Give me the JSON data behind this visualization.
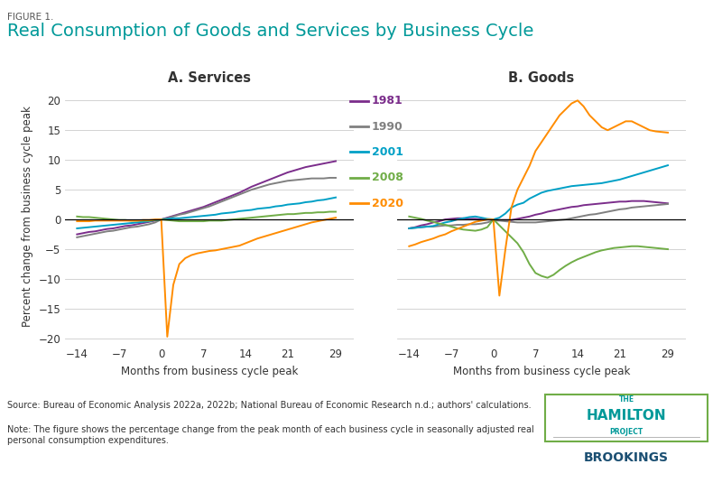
{
  "title_small": "FIGURE 1.",
  "title_main": "Real Consumption of Goods and Services by Business Cycle",
  "subtitle_left": "A. Services",
  "subtitle_right": "B. Goods",
  "ylabel": "Percent change from business cycle peak",
  "xlabel": "Months from business cycle peak",
  "xticks": [
    -14,
    -7,
    0,
    7,
    14,
    21,
    29
  ],
  "xlim": [
    -16,
    32
  ],
  "ylim": [
    -21,
    22
  ],
  "yticks": [
    -20,
    -15,
    -10,
    -5,
    0,
    5,
    10,
    15,
    20
  ],
  "source_text": "Source: Bureau of Economic Analysis 2022a, 2022b; National Bureau of Economic Research n.d.; authors' calculations.",
  "note_text": "Note: The figure shows the percentage change from the peak month of each business cycle in seasonally adjusted real\npersonal consumption expenditures.",
  "colors": {
    "1981": "#7B2D8B",
    "1990": "#808080",
    "2001": "#00A0C6",
    "2008": "#70AD47",
    "2020": "#FF8C00"
  },
  "legend_labels": [
    "1981",
    "1990",
    "2001",
    "2008",
    "2020"
  ],
  "services": {
    "1981": {
      "x": [
        -14,
        -13,
        -12,
        -11,
        -10,
        -9,
        -8,
        -7,
        -6,
        -5,
        -4,
        -3,
        -2,
        -1,
        0,
        1,
        2,
        3,
        4,
        5,
        6,
        7,
        8,
        9,
        10,
        11,
        12,
        13,
        14,
        15,
        16,
        17,
        18,
        19,
        20,
        21,
        22,
        23,
        24,
        25,
        26,
        27,
        28,
        29
      ],
      "y": [
        -2.5,
        -2.3,
        -2.1,
        -2.0,
        -1.8,
        -1.6,
        -1.5,
        -1.3,
        -1.1,
        -1.0,
        -0.8,
        -0.6,
        -0.4,
        -0.2,
        0,
        0.3,
        0.6,
        0.9,
        1.2,
        1.5,
        1.8,
        2.1,
        2.5,
        2.9,
        3.3,
        3.7,
        4.1,
        4.5,
        5.0,
        5.5,
        5.9,
        6.3,
        6.7,
        7.1,
        7.5,
        7.9,
        8.2,
        8.5,
        8.8,
        9.0,
        9.2,
        9.4,
        9.6,
        9.8
      ]
    },
    "1990": {
      "x": [
        -14,
        -13,
        -12,
        -11,
        -10,
        -9,
        -8,
        -7,
        -6,
        -5,
        -4,
        -3,
        -2,
        -1,
        0,
        1,
        2,
        3,
        4,
        5,
        6,
        7,
        8,
        9,
        10,
        11,
        12,
        13,
        14,
        15,
        16,
        17,
        18,
        19,
        20,
        21,
        22,
        23,
        24,
        25,
        26,
        27,
        28,
        29
      ],
      "y": [
        -3.0,
        -2.8,
        -2.6,
        -2.4,
        -2.2,
        -2.0,
        -1.9,
        -1.7,
        -1.5,
        -1.3,
        -1.2,
        -1.0,
        -0.8,
        -0.5,
        0,
        0.2,
        0.5,
        0.8,
        1.0,
        1.3,
        1.6,
        1.9,
        2.2,
        2.6,
        3.0,
        3.4,
        3.8,
        4.2,
        4.6,
        5.0,
        5.3,
        5.6,
        5.9,
        6.1,
        6.3,
        6.5,
        6.6,
        6.7,
        6.8,
        6.9,
        6.9,
        6.9,
        7.0,
        7.0
      ]
    },
    "2001": {
      "x": [
        -14,
        -13,
        -12,
        -11,
        -10,
        -9,
        -8,
        -7,
        -6,
        -5,
        -4,
        -3,
        -2,
        -1,
        0,
        1,
        2,
        3,
        4,
        5,
        6,
        7,
        8,
        9,
        10,
        11,
        12,
        13,
        14,
        15,
        16,
        17,
        18,
        19,
        20,
        21,
        22,
        23,
        24,
        25,
        26,
        27,
        28,
        29
      ],
      "y": [
        -1.5,
        -1.4,
        -1.3,
        -1.2,
        -1.1,
        -1.0,
        -0.9,
        -0.8,
        -0.7,
        -0.6,
        -0.5,
        -0.4,
        -0.3,
        -0.1,
        0,
        0.1,
        0.2,
        0.2,
        0.3,
        0.4,
        0.5,
        0.6,
        0.7,
        0.8,
        1.0,
        1.1,
        1.2,
        1.4,
        1.5,
        1.6,
        1.8,
        1.9,
        2.0,
        2.2,
        2.3,
        2.5,
        2.6,
        2.7,
        2.9,
        3.0,
        3.2,
        3.3,
        3.5,
        3.7
      ]
    },
    "2008": {
      "x": [
        -14,
        -13,
        -12,
        -11,
        -10,
        -9,
        -8,
        -7,
        -6,
        -5,
        -4,
        -3,
        -2,
        -1,
        0,
        1,
        2,
        3,
        4,
        5,
        6,
        7,
        8,
        9,
        10,
        11,
        12,
        13,
        14,
        15,
        16,
        17,
        18,
        19,
        20,
        21,
        22,
        23,
        24,
        25,
        26,
        27,
        28,
        29
      ],
      "y": [
        0.5,
        0.4,
        0.4,
        0.3,
        0.2,
        0.1,
        0.0,
        -0.1,
        -0.1,
        -0.2,
        -0.2,
        -0.2,
        -0.2,
        -0.1,
        0,
        -0.1,
        -0.2,
        -0.3,
        -0.3,
        -0.3,
        -0.3,
        -0.3,
        -0.2,
        -0.2,
        -0.2,
        -0.1,
        0.0,
        0.1,
        0.2,
        0.3,
        0.4,
        0.5,
        0.6,
        0.7,
        0.8,
        0.9,
        0.9,
        1.0,
        1.1,
        1.1,
        1.2,
        1.2,
        1.3,
        1.3
      ]
    },
    "2020": {
      "x": [
        -14,
        -13,
        -12,
        -11,
        -10,
        -9,
        -8,
        -7,
        -6,
        -5,
        -4,
        -3,
        -2,
        -1,
        0,
        1,
        2,
        3,
        4,
        5,
        6,
        7,
        8,
        9,
        10,
        11,
        12,
        13,
        14,
        15,
        16,
        17,
        18,
        19,
        20,
        21,
        22,
        23,
        24,
        25,
        26,
        27,
        28,
        29
      ],
      "y": [
        -0.3,
        -0.3,
        -0.3,
        -0.2,
        -0.2,
        -0.2,
        -0.2,
        -0.2,
        -0.2,
        -0.2,
        -0.2,
        -0.1,
        -0.1,
        0,
        0,
        -19.7,
        -11.0,
        -7.5,
        -6.5,
        -6.0,
        -5.7,
        -5.5,
        -5.3,
        -5.2,
        -5.0,
        -4.8,
        -4.6,
        -4.4,
        -4.0,
        -3.6,
        -3.2,
        -2.9,
        -2.6,
        -2.3,
        -2.0,
        -1.7,
        -1.4,
        -1.1,
        -0.8,
        -0.5,
        -0.3,
        -0.1,
        0.1,
        0.3
      ]
    }
  },
  "goods": {
    "1981": {
      "x": [
        -14,
        -13,
        -12,
        -11,
        -10,
        -9,
        -8,
        -7,
        -6,
        -5,
        -4,
        -3,
        -2,
        -1,
        0,
        1,
        2,
        3,
        4,
        5,
        6,
        7,
        8,
        9,
        10,
        11,
        12,
        13,
        14,
        15,
        16,
        17,
        18,
        19,
        20,
        21,
        22,
        23,
        24,
        25,
        26,
        27,
        28,
        29
      ],
      "y": [
        -1.5,
        -1.3,
        -1.0,
        -0.8,
        -0.5,
        -0.3,
        0,
        0.1,
        0.2,
        0.2,
        0.1,
        0.1,
        0,
        0,
        0,
        -0.1,
        -0.1,
        -0.1,
        0.1,
        0.3,
        0.5,
        0.8,
        1.0,
        1.3,
        1.5,
        1.7,
        1.9,
        2.1,
        2.2,
        2.4,
        2.5,
        2.6,
        2.7,
        2.8,
        2.9,
        3.0,
        3.0,
        3.1,
        3.1,
        3.1,
        3.0,
        2.9,
        2.8,
        2.7
      ]
    },
    "1990": {
      "x": [
        -14,
        -13,
        -12,
        -11,
        -10,
        -9,
        -8,
        -7,
        -6,
        -5,
        -4,
        -3,
        -2,
        -1,
        0,
        1,
        2,
        3,
        4,
        5,
        6,
        7,
        8,
        9,
        10,
        11,
        12,
        13,
        14,
        15,
        16,
        17,
        18,
        19,
        20,
        21,
        22,
        23,
        24,
        25,
        26,
        27,
        28,
        29
      ],
      "y": [
        -1.5,
        -1.4,
        -1.3,
        -1.2,
        -1.2,
        -1.1,
        -1.0,
        -1.0,
        -0.9,
        -0.9,
        -0.8,
        -0.8,
        -0.7,
        -0.5,
        -0.2,
        -0.2,
        -0.3,
        -0.4,
        -0.5,
        -0.5,
        -0.5,
        -0.5,
        -0.4,
        -0.3,
        -0.2,
        -0.1,
        0.0,
        0.2,
        0.4,
        0.6,
        0.8,
        0.9,
        1.1,
        1.3,
        1.5,
        1.7,
        1.8,
        2.0,
        2.1,
        2.2,
        2.3,
        2.4,
        2.5,
        2.6
      ]
    },
    "2001": {
      "x": [
        -14,
        -13,
        -12,
        -11,
        -10,
        -9,
        -8,
        -7,
        -6,
        -5,
        -4,
        -3,
        -2,
        -1,
        0,
        1,
        2,
        3,
        4,
        5,
        6,
        7,
        8,
        9,
        10,
        11,
        12,
        13,
        14,
        15,
        16,
        17,
        18,
        19,
        20,
        21,
        22,
        23,
        24,
        25,
        26,
        27,
        28,
        29
      ],
      "y": [
        -1.5,
        -1.4,
        -1.3,
        -1.2,
        -1.1,
        -0.8,
        -0.5,
        -0.3,
        0,
        0.2,
        0.4,
        0.5,
        0.3,
        0.1,
        0,
        0.3,
        1.0,
        2.0,
        2.5,
        2.8,
        3.5,
        4.0,
        4.5,
        4.8,
        5.0,
        5.2,
        5.4,
        5.6,
        5.7,
        5.8,
        5.9,
        6.0,
        6.1,
        6.3,
        6.5,
        6.7,
        7.0,
        7.3,
        7.6,
        7.9,
        8.2,
        8.5,
        8.8,
        9.1
      ]
    },
    "2008": {
      "x": [
        -14,
        -13,
        -12,
        -11,
        -10,
        -9,
        -8,
        -7,
        -6,
        -5,
        -4,
        -3,
        -2,
        -1,
        0,
        1,
        2,
        3,
        4,
        5,
        6,
        7,
        8,
        9,
        10,
        11,
        12,
        13,
        14,
        15,
        16,
        17,
        18,
        19,
        20,
        21,
        22,
        23,
        24,
        25,
        26,
        27,
        28,
        29
      ],
      "y": [
        0.5,
        0.3,
        0.1,
        -0.2,
        -0.4,
        -0.7,
        -0.9,
        -1.2,
        -1.5,
        -1.7,
        -1.8,
        -1.9,
        -1.7,
        -1.3,
        0,
        -1.0,
        -2.0,
        -3.0,
        -4.0,
        -5.5,
        -7.5,
        -9.0,
        -9.5,
        -9.8,
        -9.3,
        -8.5,
        -7.8,
        -7.2,
        -6.7,
        -6.3,
        -5.9,
        -5.5,
        -5.2,
        -5.0,
        -4.8,
        -4.7,
        -4.6,
        -4.5,
        -4.5,
        -4.6,
        -4.7,
        -4.8,
        -4.9,
        -5.0
      ]
    },
    "2020": {
      "x": [
        -14,
        -13,
        -12,
        -11,
        -10,
        -9,
        -8,
        -7,
        -6,
        -5,
        -4,
        -3,
        -2,
        -1,
        0,
        1,
        2,
        3,
        4,
        5,
        6,
        7,
        8,
        9,
        10,
        11,
        12,
        13,
        14,
        15,
        16,
        17,
        18,
        19,
        20,
        21,
        22,
        23,
        24,
        25,
        26,
        27,
        28,
        29
      ],
      "y": [
        -4.5,
        -4.2,
        -3.8,
        -3.5,
        -3.2,
        -2.8,
        -2.5,
        -2.0,
        -1.6,
        -1.2,
        -0.8,
        -0.4,
        -0.2,
        0,
        0,
        -12.8,
        -5.0,
        2.0,
        5.0,
        7.0,
        9.0,
        11.5,
        13.0,
        14.5,
        16.0,
        17.5,
        18.5,
        19.5,
        20.0,
        19.0,
        17.5,
        16.5,
        15.5,
        15.0,
        15.5,
        16.0,
        16.5,
        16.5,
        16.0,
        15.5,
        15.0,
        14.8,
        14.7,
        14.6
      ]
    }
  },
  "background_color": "#FFFFFF",
  "title_color": "#009999",
  "figure1_color": "#555555",
  "grid_color": "#CCCCCC",
  "zero_line_color": "#000000"
}
